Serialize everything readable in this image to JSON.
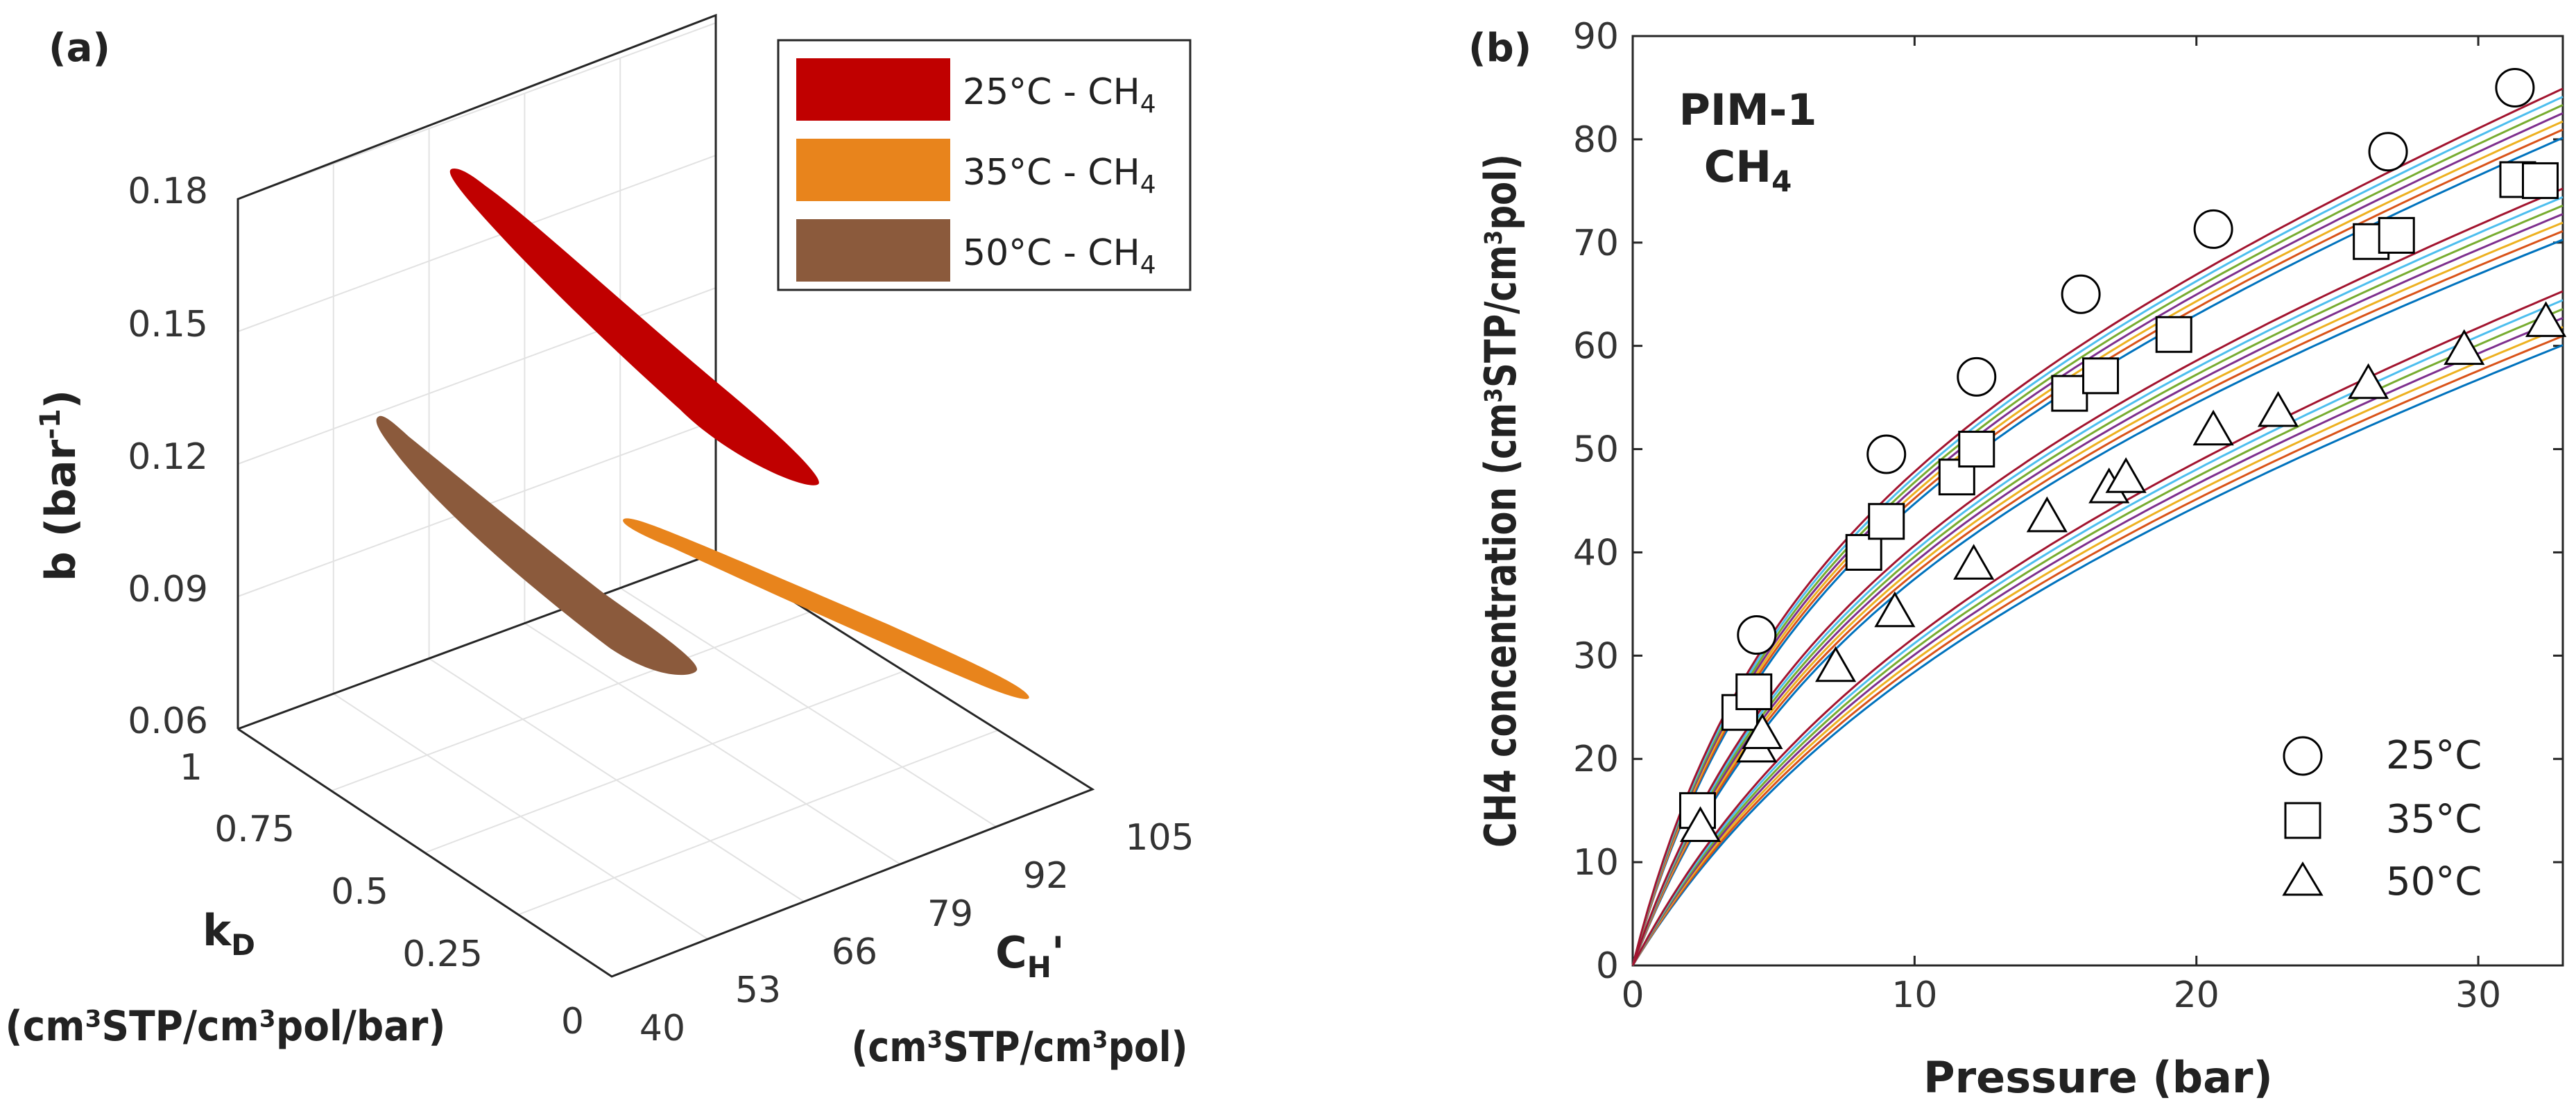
{
  "chart_data": [
    {
      "panel": "(a)",
      "type": "3d-ellipse",
      "xlabel": "k",
      "xlabel_sub": "D",
      "xlabel_units": "(cm³STP/cm³pol/bar)",
      "ylabel": "C",
      "ylabel_sub": "H",
      "ylabel_suffix": "'",
      "ylabel_units": "(cm³STP/cm³pol)",
      "zlabel": "b (bar",
      "zlabel_sup": "-1",
      "zlabel_close": ")",
      "kD_ticks": [
        "0",
        "0.25",
        "0.5",
        "0.75",
        "1"
      ],
      "kD_range": [
        0,
        1
      ],
      "CH_ticks": [
        "40",
        "53",
        "66",
        "79",
        "92",
        "105"
      ],
      "CH_range": [
        40,
        105
      ],
      "b_ticks": [
        "0.06",
        "0.09",
        "0.12",
        "0.15",
        "0.18"
      ],
      "b_range": [
        0.06,
        0.18
      ],
      "series": [
        {
          "name": "25°C - CH",
          "sub": "4",
          "color": "#c00000",
          "kD": [
            0.72,
            0.28
          ],
          "CH": [
            46,
            60
          ],
          "b": [
            0.19,
            0.075
          ]
        },
        {
          "name": "35°C - CH",
          "sub": "4",
          "color": "#e8841c",
          "kD": [
            0.2,
            0.02
          ],
          "CH": [
            92,
            104
          ],
          "b": [
            0.076,
            0.052
          ]
        },
        {
          "name": "50°C - CH",
          "sub": "4",
          "color": "#8b5a3c",
          "kD": [
            0.55,
            0.02
          ],
          "CH": [
            78,
            86
          ],
          "b": [
            0.135,
            0.06
          ]
        }
      ]
    },
    {
      "panel": "(b)",
      "type": "line+scatter",
      "annotation": "PIM-1",
      "annotation2": "CH",
      "annotation2_sub": "4",
      "xlabel": "Pressure (bar)",
      "ylabel": "CH4 concentration (cm³STP/cm³pol)",
      "xlim": [
        0,
        33
      ],
      "ylim": [
        0,
        90
      ],
      "xticks": [
        0,
        10,
        20,
        30
      ],
      "yticks": [
        0,
        10,
        20,
        30,
        40,
        50,
        60,
        70,
        80,
        90
      ],
      "series": [
        {
          "name": "25°C",
          "marker": "circle",
          "x": [
            4.4,
            9.0,
            12.2,
            15.9,
            20.6,
            26.8,
            31.3
          ],
          "y": [
            32,
            49.5,
            57,
            65,
            71.3,
            78.8,
            85
          ],
          "fit": {
            "kD": 0.98,
            "CH": 60,
            "b": 0.155
          }
        },
        {
          "name": "35°C",
          "marker": "square",
          "x": [
            2.3,
            3.8,
            4.3,
            8.2,
            9.0,
            11.5,
            12.2,
            15.5,
            16.6,
            19.2,
            26.2,
            27.1,
            31.4,
            32.2
          ],
          "y": [
            15,
            24.5,
            26.5,
            40,
            43,
            47.3,
            50,
            55.4,
            57.1,
            61.1,
            70.1,
            70.7,
            76.1,
            76
          ],
          "fit": {
            "kD": 0.85,
            "CH": 56,
            "b": 0.12
          }
        },
        {
          "name": "50°C",
          "marker": "triangle",
          "x": [
            2.4,
            4.4,
            4.6,
            7.2,
            9.3,
            12.1,
            14.7,
            16.9,
            17.5,
            20.6,
            22.9,
            26.1,
            29.5,
            32.4
          ],
          "y": [
            13.4,
            21.1,
            22.4,
            28.9,
            34.2,
            38.8,
            43.4,
            46.2,
            47.2,
            51.8,
            53.6,
            56.3,
            59.6,
            62.3
          ],
          "fit": {
            "kD": 0.85,
            "CH": 47,
            "b": 0.085
          }
        }
      ]
    }
  ]
}
